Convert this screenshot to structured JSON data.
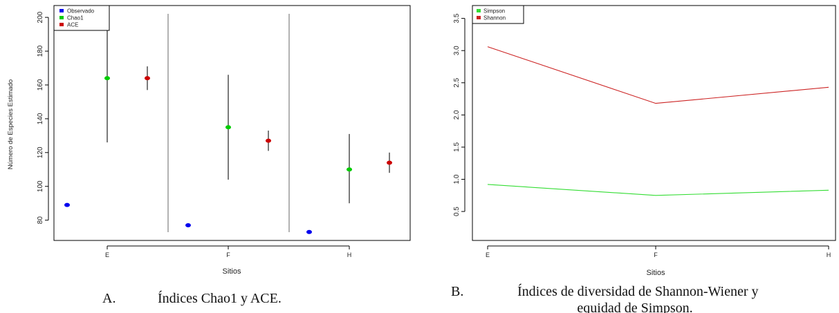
{
  "chart_data": [
    {
      "type": "scatter",
      "panel_letter": "A.",
      "caption": "Índices Chao1 y ACE.",
      "xlabel": "Sitios",
      "ylabel": "Número de Especies Estimado",
      "categories": [
        "E",
        "F",
        "H"
      ],
      "ylim": [
        68,
        207
      ],
      "yticks": [
        80,
        100,
        120,
        140,
        160,
        180,
        200
      ],
      "grid": false,
      "legend_position": "top-left",
      "series": [
        {
          "name": "Observado",
          "color": "#0000ee",
          "values": [
            89,
            77,
            73
          ],
          "error_low": [
            null,
            null,
            null
          ],
          "error_high": [
            null,
            null,
            null
          ]
        },
        {
          "name": "Chao1",
          "color": "#00cc00",
          "values": [
            164,
            135,
            110
          ],
          "error_low": [
            126,
            104,
            90
          ],
          "error_high": [
            207,
            166,
            131
          ]
        },
        {
          "name": "ACE",
          "color": "#cc0000",
          "values": [
            164,
            127,
            114
          ],
          "error_low": [
            157,
            121,
            108
          ],
          "error_high": [
            171,
            133,
            120
          ]
        }
      ]
    },
    {
      "type": "line",
      "panel_letter": "B.",
      "caption_line1": "Índices de diversidad de Shannon-Wiener y",
      "caption_line2": "equidad de Simpson.",
      "xlabel": "Sitios",
      "ylabel": "",
      "categories": [
        "E",
        "F",
        "H"
      ],
      "ylim": [
        0.05,
        3.7
      ],
      "yticks": [
        "0.5",
        "1.0",
        "1.5",
        "2.0",
        "2.5",
        "3.0",
        "3.5"
      ],
      "grid": false,
      "legend_position": "top-left",
      "series": [
        {
          "name": "Simpson",
          "color": "#33dd33",
          "values": [
            0.92,
            0.75,
            0.83
          ]
        },
        {
          "name": "Shannon",
          "color": "#cc2222",
          "values": [
            3.06,
            2.18,
            2.43
          ]
        }
      ]
    }
  ]
}
